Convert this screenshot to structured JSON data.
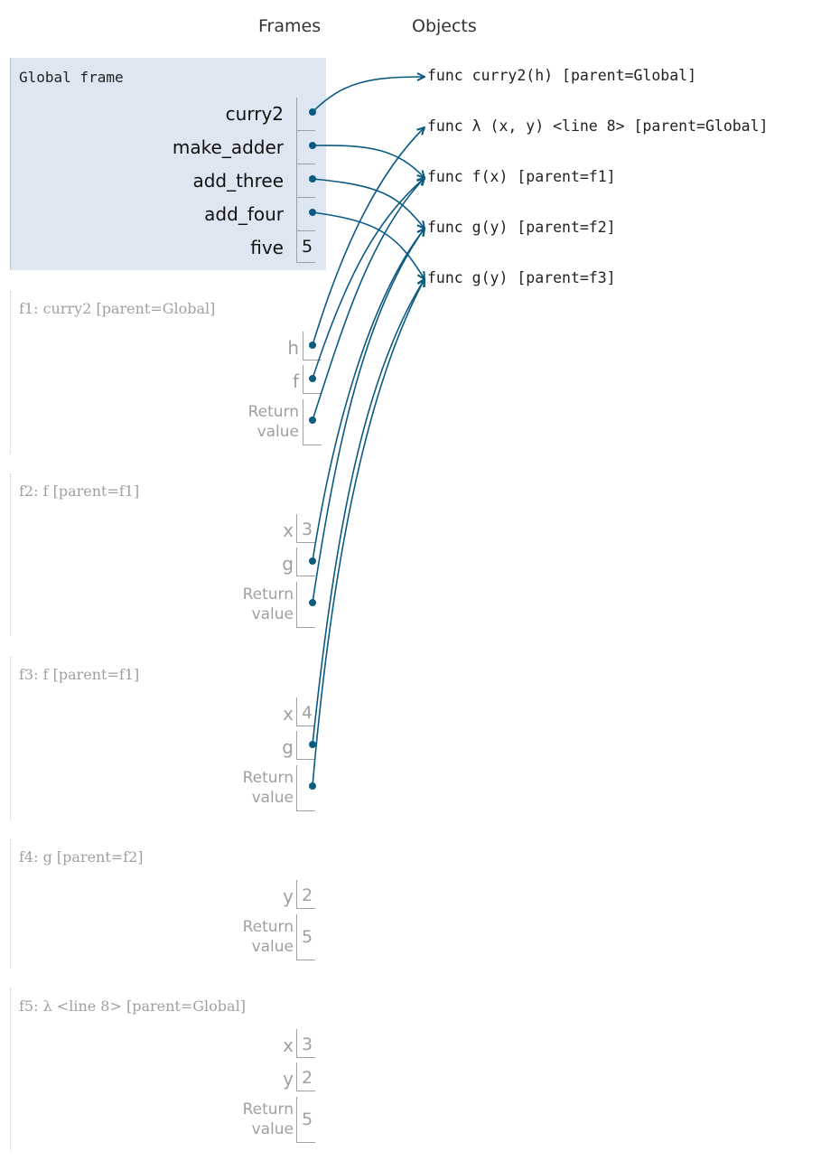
{
  "headers": {
    "frames": "Frames",
    "objects": "Objects"
  },
  "colors": {
    "arrow": "#0b5a80",
    "global_bg": "#dee6f2",
    "dim_text": "#a0a0a0"
  },
  "global": {
    "title": "Global frame",
    "vars": [
      {
        "name": "curry2",
        "value": ""
      },
      {
        "name": "make_adder",
        "value": ""
      },
      {
        "name": "add_three",
        "value": ""
      },
      {
        "name": "add_four",
        "value": ""
      },
      {
        "name": "five",
        "value": "5"
      }
    ]
  },
  "frames": [
    {
      "title": "f1: curry2 [parent=Global]",
      "vars": [
        {
          "name": "h",
          "value": ""
        },
        {
          "name": "f",
          "value": ""
        }
      ],
      "return_label": [
        "Return",
        "value"
      ],
      "return_value": ""
    },
    {
      "title": "f2: f [parent=f1]",
      "vars": [
        {
          "name": "x",
          "value": "3"
        },
        {
          "name": "g",
          "value": ""
        }
      ],
      "return_label": [
        "Return",
        "value"
      ],
      "return_value": ""
    },
    {
      "title": "f3: f [parent=f1]",
      "vars": [
        {
          "name": "x",
          "value": "4"
        },
        {
          "name": "g",
          "value": ""
        }
      ],
      "return_label": [
        "Return",
        "value"
      ],
      "return_value": ""
    },
    {
      "title": "f4: g [parent=f2]",
      "vars": [
        {
          "name": "y",
          "value": "2"
        }
      ],
      "return_label": [
        "Return",
        "value"
      ],
      "return_value": "5"
    },
    {
      "title": "f5: λ  <line  8> [parent=Global]",
      "vars": [
        {
          "name": "x",
          "value": "3"
        },
        {
          "name": "y",
          "value": "2"
        }
      ],
      "return_label": [
        "Return",
        "value"
      ],
      "return_value": "5"
    }
  ],
  "objects": [
    "func curry2(h) [parent=Global]",
    "func  λ (x,   y)  <line  8> [parent=Global]",
    "func f(x) [parent=f1]",
    "func g(y) [parent=f2]",
    "func g(y) [parent=f3]"
  ]
}
